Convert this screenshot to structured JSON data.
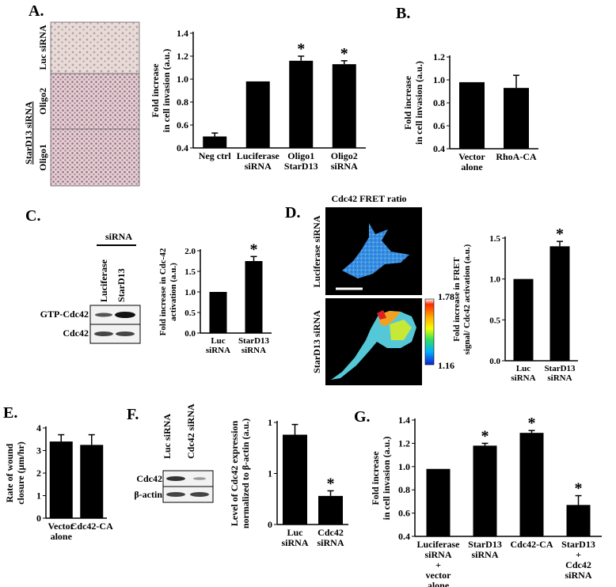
{
  "panels": {
    "A": "A.",
    "B": "B.",
    "C": "C.",
    "D": "D.",
    "E": "E.",
    "F": "F.",
    "G": "G."
  },
  "micro_A": {
    "luc_label": "Luc siRNA",
    "stard13_label": "StarD13 siRNA",
    "oligo2_label": "Oligo2",
    "oligo1_label": "Oligo1"
  },
  "blot_C": {
    "sirna_header": "siRNA",
    "lanes": [
      "Luciferase",
      "StarD13"
    ],
    "rows": [
      "GTP-Cdc42",
      "Cdc42"
    ]
  },
  "blot_F": {
    "lanes": [
      "Luc siRNA",
      "Cdc42 siRNA"
    ],
    "rows": [
      "Cdc42",
      "β-actin"
    ]
  },
  "fret_D": {
    "title": "Cdc42 FRET ratio",
    "top_label": "Luciferase siRNA",
    "bottom_label": "StarD13 siRNA",
    "scale_max": "1.78",
    "scale_min": "1.16"
  },
  "colors": {
    "bar": "#000000",
    "cell_stain": "#8b4d7a",
    "micro_bg": "#e9dcd8"
  },
  "chart_data": [
    {
      "id": "A",
      "type": "bar",
      "ylabel": [
        "Fold increase",
        "in cell invasion (a.u.)"
      ],
      "ylim": [
        0.4,
        1.4
      ],
      "yticks": [
        0.4,
        0.6,
        0.8,
        1.0,
        1.2,
        1.4
      ],
      "tick_decimals": 1,
      "categories": [
        [
          "Neg ctrl"
        ],
        [
          "Luciferase",
          "siRNA"
        ],
        [
          "Oligo1",
          "StarD13"
        ],
        [
          "Oligo2",
          "siRNA"
        ]
      ],
      "values": [
        0.5,
        0.98,
        1.16,
        1.13
      ],
      "errors": [
        0.03,
        0,
        0.04,
        0.03
      ],
      "significant": [
        false,
        false,
        true,
        true
      ]
    },
    {
      "id": "B",
      "type": "bar",
      "ylabel": [
        "Fold increase",
        "in cell invasion (a.u.)"
      ],
      "ylim": [
        0.4,
        1.2
      ],
      "yticks": [
        0.4,
        0.6,
        0.8,
        1.0,
        1.2
      ],
      "tick_decimals": 1,
      "categories": [
        [
          "Vector",
          "alone"
        ],
        [
          "RhoA-CA"
        ]
      ],
      "values": [
        0.98,
        0.93
      ],
      "errors": [
        0,
        0.11
      ],
      "significant": [
        false,
        false
      ]
    },
    {
      "id": "C",
      "type": "bar",
      "ylabel": [
        "Fold increase in Cdc-42",
        "activation (a.u.)"
      ],
      "ylim": [
        0,
        2.0
      ],
      "yticks": [
        0,
        0.5,
        1.0,
        1.5,
        2.0
      ],
      "tick_decimals": 1,
      "categories": [
        [
          "Luc",
          "siRNA"
        ],
        [
          "StarD13",
          "siRNA"
        ]
      ],
      "values": [
        1.0,
        1.75
      ],
      "errors": [
        0,
        0.11
      ],
      "significant": [
        false,
        true
      ]
    },
    {
      "id": "D",
      "type": "bar",
      "ylabel": [
        "Fold increase in FRET",
        "signal/ Cdc42 activation (a.u.)"
      ],
      "ylim": [
        0,
        1.5
      ],
      "yticks": [
        0,
        0.5,
        1.0,
        1.5
      ],
      "tick_decimals": 1,
      "categories": [
        [
          "Luc",
          "siRNA"
        ],
        [
          "StarD13",
          "siRNA"
        ]
      ],
      "values": [
        1.0,
        1.4
      ],
      "errors": [
        0,
        0.06
      ],
      "significant": [
        false,
        true
      ]
    },
    {
      "id": "E",
      "type": "bar",
      "ylabel": [
        "Rate of wound",
        "closure (μm/hr)"
      ],
      "ylim": [
        0,
        4
      ],
      "yticks": [
        0,
        1,
        2,
        3,
        4
      ],
      "tick_decimals": 0,
      "categories": [
        [
          "Vector",
          "alone"
        ],
        [
          "Cdc42-CA"
        ]
      ],
      "values": [
        3.4,
        3.25
      ],
      "errors": [
        0.3,
        0.45
      ],
      "significant": [
        false,
        false
      ]
    },
    {
      "id": "F",
      "type": "bar",
      "ylabel": [
        "Level of Cdc42 expression",
        "normalized to β-actin (a.u.)"
      ],
      "ylim": [
        0,
        1.0
      ],
      "yticks": [
        0,
        0.5,
        1
      ],
      "tick_decimals": 0,
      "categories": [
        [
          "Luc",
          "siRNA"
        ],
        [
          "Cdc42",
          "siRNA"
        ]
      ],
      "values": [
        0.88,
        0.28
      ],
      "errors": [
        0.1,
        0.05
      ],
      "significant": [
        false,
        true
      ]
    },
    {
      "id": "G",
      "type": "bar",
      "ylabel": [
        "Fold increase",
        "in cell invasion (a.u.)"
      ],
      "ylim": [
        0.4,
        1.4
      ],
      "yticks": [
        0.4,
        0.6,
        0.8,
        1.0,
        1.2,
        1.4
      ],
      "tick_decimals": 1,
      "categories": [
        [
          "Luciferase",
          "siRNA",
          "+",
          "vector",
          "alone"
        ],
        [
          "StarD13",
          "siRNA"
        ],
        [
          "Cdc42-CA"
        ],
        [
          "StarD13",
          "+",
          "Cdc42",
          "siRNA"
        ]
      ],
      "values": [
        0.98,
        1.18,
        1.29,
        0.67
      ],
      "errors": [
        0,
        0.02,
        0.02,
        0.08
      ],
      "significant": [
        false,
        true,
        true,
        true
      ]
    }
  ]
}
